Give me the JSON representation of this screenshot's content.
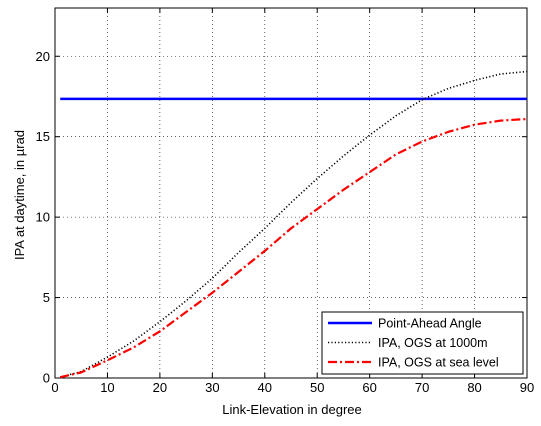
{
  "chart_data": {
    "type": "line",
    "xlabel": "Link-Elevation in degree",
    "ylabel": "IPA at daytime, in µrad",
    "xlim": [
      0,
      90
    ],
    "ylim": [
      0,
      23
    ],
    "xticks": [
      0,
      10,
      20,
      30,
      40,
      50,
      60,
      70,
      80,
      90
    ],
    "yticks": [
      0,
      5,
      10,
      15,
      20
    ],
    "grid": true,
    "legend_position": "bottom-right",
    "series": [
      {
        "name": "Point-Ahead Angle",
        "color": "#0000ff",
        "style": "solid",
        "x": [
          1,
          90
        ],
        "y": [
          17.35,
          17.35
        ]
      },
      {
        "name": "IPA, OGS at 1000m",
        "color": "#000000",
        "style": "dotted",
        "x": [
          1,
          5,
          10,
          15,
          20,
          25,
          30,
          35,
          40,
          45,
          50,
          55,
          60,
          65,
          70,
          75,
          80,
          85,
          90
        ],
        "y": [
          0.05,
          0.4,
          1.3,
          2.3,
          3.5,
          4.8,
          6.2,
          7.8,
          9.3,
          10.9,
          12.4,
          13.8,
          15.1,
          16.3,
          17.3,
          18.0,
          18.5,
          18.9,
          19.05
        ]
      },
      {
        "name": "IPA, OGS at sea level",
        "color": "#ff0000",
        "style": "dashdot",
        "x": [
          1,
          5,
          10,
          15,
          20,
          25,
          30,
          35,
          40,
          45,
          50,
          55,
          60,
          65,
          70,
          75,
          80,
          85,
          90
        ],
        "y": [
          0.05,
          0.35,
          1.1,
          1.9,
          2.9,
          4.1,
          5.3,
          6.6,
          7.9,
          9.3,
          10.5,
          11.7,
          12.8,
          13.9,
          14.7,
          15.3,
          15.75,
          16.0,
          16.1
        ]
      }
    ]
  }
}
